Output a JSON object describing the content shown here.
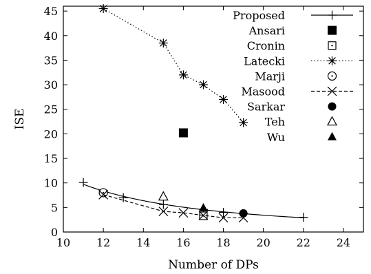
{
  "chart_data": {
    "type": "scatter",
    "title": "",
    "xlabel": "Number of DPs",
    "ylabel": "ISE",
    "xlim": [
      10,
      25
    ],
    "ylim": [
      0,
      46
    ],
    "xticks": [
      10,
      12,
      14,
      16,
      18,
      20,
      22,
      24
    ],
    "yticks": [
      0,
      5,
      10,
      15,
      20,
      25,
      30,
      35,
      40,
      45
    ],
    "grid": false,
    "legend_position": "top-right",
    "series": [
      {
        "name": "Proposed",
        "marker": "plus",
        "line": "solid",
        "x": [
          11,
          13,
          15,
          17,
          18,
          19,
          22
        ],
        "y": [
          10.1,
          7.0,
          5.6,
          4.6,
          4.0,
          3.7,
          3.0
        ],
        "curve": "fit",
        "curve_x": [
          11,
          22
        ]
      },
      {
        "name": "Ansari",
        "marker": "filled-square",
        "line": "none",
        "x": [
          16
        ],
        "y": [
          20.2
        ]
      },
      {
        "name": "Cronin",
        "marker": "dotted-square",
        "line": "none",
        "x": [
          17
        ],
        "y": [
          3.3
        ]
      },
      {
        "name": "Latecki",
        "marker": "asterisk",
        "line": "dotted",
        "x": [
          12,
          15,
          16,
          17,
          18,
          19
        ],
        "y": [
          45.5,
          38.5,
          32.0,
          30.0,
          27.0,
          22.3
        ]
      },
      {
        "name": "Marji",
        "marker": "dotted-circle",
        "line": "none",
        "x": [
          12
        ],
        "y": [
          8.0
        ]
      },
      {
        "name": "Masood",
        "marker": "cross",
        "line": "dashed",
        "x": [
          12,
          15,
          16,
          17,
          18,
          19
        ],
        "y": [
          7.6,
          4.2,
          3.9,
          3.4,
          2.9,
          2.9
        ]
      },
      {
        "name": "Sarkar",
        "marker": "filled-circle",
        "line": "none",
        "x": [
          19
        ],
        "y": [
          3.8
        ]
      },
      {
        "name": "Teh",
        "marker": "open-triangle",
        "line": "none",
        "x": [
          15
        ],
        "y": [
          7.2
        ]
      },
      {
        "name": "Wu",
        "marker": "filled-triangle",
        "line": "none",
        "x": [
          17
        ],
        "y": [
          4.9
        ]
      }
    ]
  }
}
